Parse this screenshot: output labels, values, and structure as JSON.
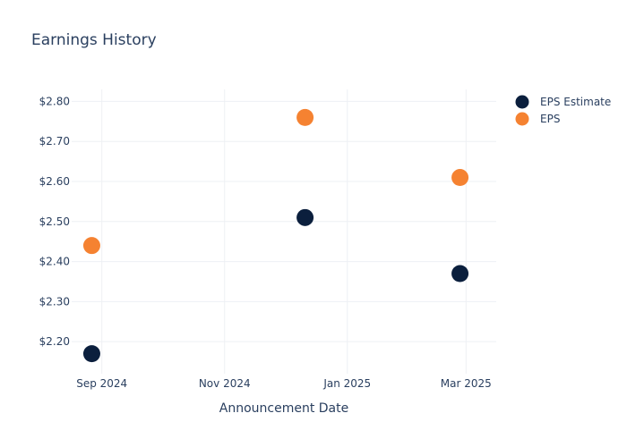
{
  "chart_data": {
    "type": "scatter",
    "title": "Earnings History",
    "xlabel": "Announcement Date",
    "ylabel": "",
    "x_ticks": [
      {
        "date": "2024-09-01",
        "label": "Sep 2024"
      },
      {
        "date": "2024-11-01",
        "label": "Nov 2024"
      },
      {
        "date": "2025-01-01",
        "label": "Jan 2025"
      },
      {
        "date": "2025-03-01",
        "label": "Mar 2025"
      }
    ],
    "xlim": [
      "2024-08-17",
      "2025-03-16"
    ],
    "ylim": [
      2.12,
      2.83
    ],
    "y_ticks": [
      {
        "value": 2.2,
        "label": "$2.20"
      },
      {
        "value": 2.3,
        "label": "$2.30"
      },
      {
        "value": 2.4,
        "label": "$2.40"
      },
      {
        "value": 2.5,
        "label": "$2.50"
      },
      {
        "value": 2.6,
        "label": "$2.60"
      },
      {
        "value": 2.7,
        "label": "$2.70"
      },
      {
        "value": 2.8,
        "label": "$2.80"
      }
    ],
    "grid": true,
    "legend_position": "top-right",
    "series": [
      {
        "name": "EPS Estimate",
        "color": "#0b1f3d",
        "points": [
          {
            "x": "2024-08-27",
            "y": 2.17
          },
          {
            "x": "2024-12-11",
            "y": 2.51
          },
          {
            "x": "2025-02-26",
            "y": 2.37
          }
        ]
      },
      {
        "name": "EPS",
        "color": "#f58231",
        "points": [
          {
            "x": "2024-08-27",
            "y": 2.44
          },
          {
            "x": "2024-12-11",
            "y": 2.76
          },
          {
            "x": "2025-02-26",
            "y": 2.61
          }
        ]
      }
    ]
  }
}
